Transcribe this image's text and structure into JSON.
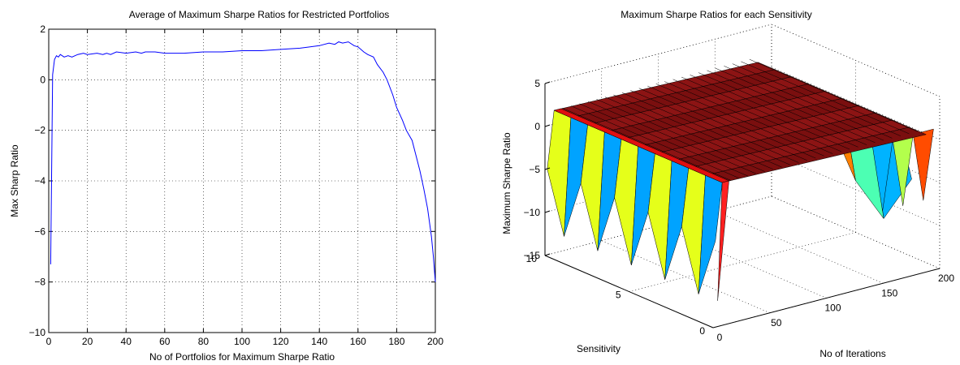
{
  "chart_data": [
    {
      "type": "line",
      "title": "Average of Maximum Sharpe Ratios for Restricted Portfolios",
      "xlabel": "No of Portfolios for Maximum Sharpe Ratio",
      "ylabel": "Max Sharp Ratio",
      "xlim": [
        0,
        200
      ],
      "ylim": [
        -10,
        2
      ],
      "x_ticks": [
        "0",
        "20",
        "40",
        "60",
        "80",
        "100",
        "120",
        "140",
        "160",
        "180",
        "200"
      ],
      "y_ticks": [
        "−10",
        "−8",
        "−6",
        "−4",
        "−2",
        "0",
        "2"
      ],
      "grid": true,
      "series_color": "#0000ff",
      "series": [
        {
          "name": "",
          "x": [
            1,
            2,
            3,
            4,
            5,
            6,
            8,
            10,
            12,
            15,
            18,
            20,
            25,
            28,
            30,
            32,
            35,
            40,
            45,
            48,
            50,
            55,
            60,
            70,
            80,
            90,
            100,
            110,
            120,
            130,
            140,
            145,
            148,
            150,
            152,
            155,
            158,
            160,
            163,
            165,
            168,
            170,
            173,
            175,
            178,
            180,
            183,
            185,
            188,
            190,
            192,
            194,
            196,
            198,
            199,
            200
          ],
          "y": [
            -7.3,
            0.2,
            0.8,
            0.95,
            0.9,
            1.0,
            0.9,
            0.95,
            0.9,
            1.0,
            1.05,
            1.0,
            1.05,
            1.0,
            1.05,
            1.0,
            1.1,
            1.05,
            1.1,
            1.05,
            1.1,
            1.1,
            1.05,
            1.05,
            1.1,
            1.1,
            1.15,
            1.15,
            1.2,
            1.25,
            1.35,
            1.45,
            1.4,
            1.5,
            1.45,
            1.5,
            1.35,
            1.3,
            1.1,
            1.0,
            0.9,
            0.6,
            0.3,
            0.0,
            -0.6,
            -1.1,
            -1.6,
            -2.0,
            -2.4,
            -3.0,
            -3.6,
            -4.3,
            -5.1,
            -6.2,
            -7.0,
            -8.0
          ]
        }
      ]
    },
    {
      "type": "surface3d",
      "title": "Maximum Sharpe Ratios for each Sensitivity",
      "xlabel": "No of Iterations",
      "ylabel": "Sensitivity",
      "zlabel": "Maximum Sharpe Ratio",
      "xlim": [
        0,
        200
      ],
      "ylim": [
        0,
        10
      ],
      "zlim": [
        -15,
        5
      ],
      "x_ticks": [
        "0",
        "50",
        "100",
        "150",
        "200"
      ],
      "y_ticks": [
        "0",
        "5",
        "10"
      ],
      "z_ticks": [
        "−15",
        "−10",
        "−5",
        "0",
        "5"
      ],
      "grid": true,
      "colormap": "jet",
      "surface_level": 1.0,
      "front_edge_values": [
        -5,
        -12,
        -5,
        -12,
        -5,
        -12,
        -5,
        -12,
        -5,
        -12
      ],
      "back_edge_values": [
        -6,
        -3,
        -9,
        -12
      ]
    }
  ]
}
